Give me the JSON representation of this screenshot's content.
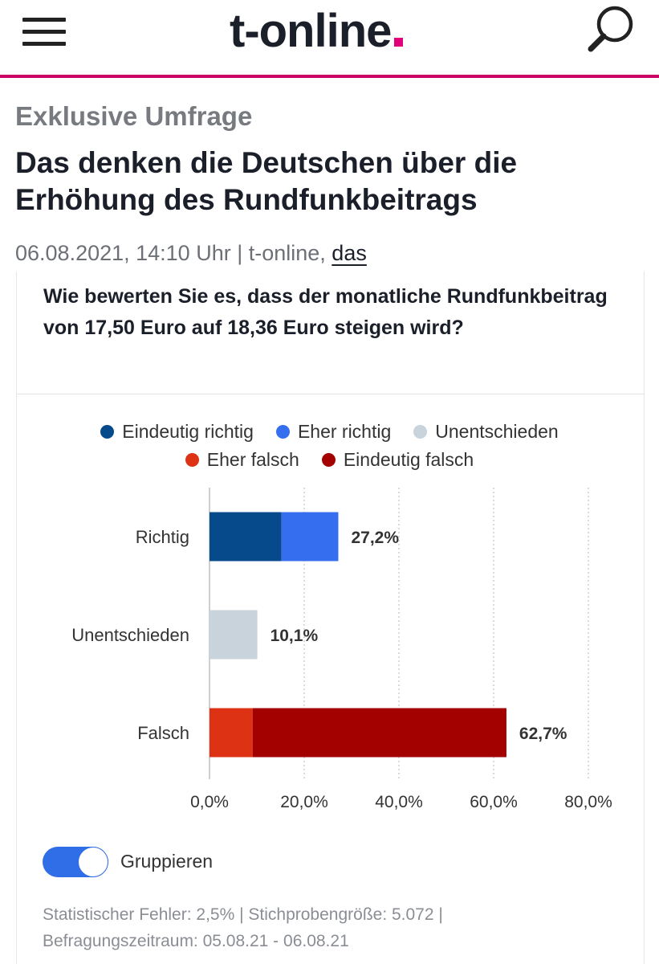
{
  "header": {
    "logo_text": "t-online",
    "menu_icon": "hamburger-menu-icon",
    "search_icon": "search-icon",
    "accent_color": "#e2007a"
  },
  "article": {
    "kicker": "Exklusive Umfrage",
    "headline": "Das denken die Deutschen über die Erhöhung des Rundfunkbeitrags",
    "meta_text": "06.08.2021, 14:10 Uhr | t-online, ",
    "meta_link": "das"
  },
  "poll": {
    "question": "Wie bewerten Sie es, dass der monatliche Rundfunkbeitrag von 17,50 Euro auf 18,36 Euro steigen wird?",
    "toggle_label": "Gruppieren",
    "toggle_on": true,
    "footnote_line1": "Statistischer Fehler: 2,5% | Stichprobengröße: 5.072 |",
    "footnote_line2": "Befragungszeitraum: 05.08.21 - 06.08.21"
  },
  "chart_data": {
    "type": "bar",
    "orientation": "horizontal",
    "stacked": true,
    "categories": [
      "Richtig",
      "Unentschieden",
      "Falsch"
    ],
    "series": [
      {
        "name": "Eindeutig richtig",
        "color": "#064a8c",
        "values": [
          15.2,
          0,
          0
        ]
      },
      {
        "name": "Eher richtig",
        "color": "#356ff0",
        "values": [
          12.0,
          0,
          0
        ]
      },
      {
        "name": "Unentschieden",
        "color": "#c8d3dc",
        "values": [
          0,
          10.1,
          0
        ]
      },
      {
        "name": "Eher falsch",
        "color": "#dd3214",
        "values": [
          0,
          0,
          9.1
        ]
      },
      {
        "name": "Eindeutig falsch",
        "color": "#a30000",
        "values": [
          0,
          0,
          53.6
        ]
      }
    ],
    "totals": [
      "27,2%",
      "10,1%",
      "62,7%"
    ],
    "x_ticks": [
      "0,0%",
      "20,0%",
      "40,0%",
      "60,0%",
      "80,0%"
    ],
    "xlim": [
      0,
      80
    ],
    "grid": "vertical dotted",
    "legend_position": "top"
  }
}
